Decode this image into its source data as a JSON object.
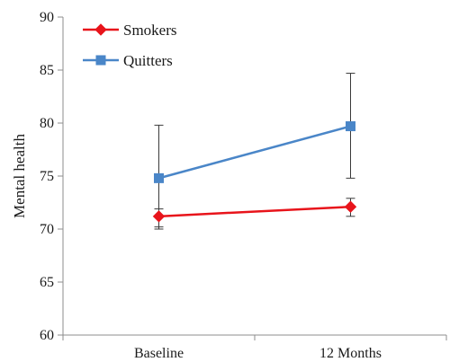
{
  "chart_data": {
    "type": "line",
    "categories": [
      "Baseline",
      "12 Months"
    ],
    "ylabel": "Mental health",
    "ylim": [
      60,
      90
    ],
    "yticks": [
      60,
      65,
      70,
      75,
      80,
      85,
      90
    ],
    "grid": false,
    "legend": "top-left",
    "series": [
      {
        "name": "Smokers",
        "color": "#e8141b",
        "marker": "diamond",
        "values": [
          71.2,
          72.1
        ],
        "error_low": [
          70.0,
          71.2
        ],
        "error_high": [
          71.9,
          72.9
        ]
      },
      {
        "name": "Quitters",
        "color": "#4a86c8",
        "marker": "square",
        "values": [
          74.8,
          79.7
        ],
        "error_low": [
          70.2,
          74.8
        ],
        "error_high": [
          79.8,
          84.7
        ]
      }
    ]
  }
}
